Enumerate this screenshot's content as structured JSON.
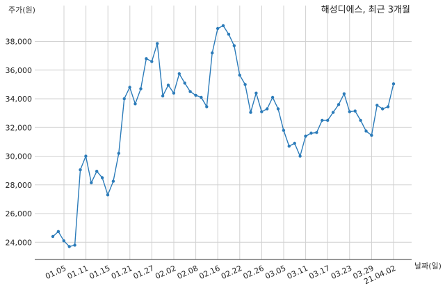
{
  "chart_data": {
    "type": "line",
    "title": "해성디에스, 최근 3개월",
    "ylabel": "주가(원)",
    "xlabel": "날짜(일)",
    "ylim": [
      22800,
      40500
    ],
    "yticks": [
      24000,
      26000,
      28000,
      30000,
      32000,
      34000,
      36000,
      38000
    ],
    "ytick_labels": [
      "24,000",
      "26,000",
      "28,000",
      "30,000",
      "32,000",
      "34,000",
      "36,000",
      "38,000"
    ],
    "xtick_labels": [
      "01.05",
      "01.11",
      "01.15",
      "01.21",
      "01.27",
      "02.02",
      "02.08",
      "02.16",
      "02.22",
      "02.26",
      "03.05",
      "03.11",
      "03.17",
      "03.23",
      "03.29",
      "21.04.02"
    ],
    "grid": true,
    "line_color": "#2b7bb9",
    "series": [
      {
        "values": [
          24400,
          24750,
          24100,
          23700,
          23800,
          29050,
          30000,
          28150,
          28950,
          28500,
          27300,
          28250,
          30200,
          34000,
          34800,
          33650,
          34700,
          36800,
          36600,
          37850,
          34200,
          34950,
          34400,
          35750,
          35100,
          34500,
          34250,
          34100,
          33450,
          37200,
          38900,
          39100,
          38500,
          37700,
          35650,
          35000,
          33050,
          34400,
          33100,
          33300,
          34100,
          33300,
          31800,
          30700,
          30900,
          30000,
          31400,
          31600,
          31650,
          32500,
          32500,
          33050,
          33600,
          34350,
          33100,
          33150,
          32500,
          31750,
          31450,
          33550,
          33300,
          33450,
          35050
        ]
      }
    ]
  }
}
